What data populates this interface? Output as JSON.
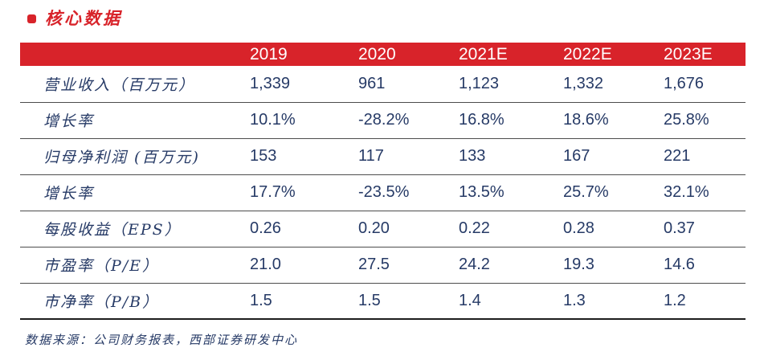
{
  "title": {
    "text": "核心数据"
  },
  "colors": {
    "accent_red": "#d8232a",
    "header_text": "#ffffff",
    "body_navy": "#263a66"
  },
  "table": {
    "header": [
      "",
      "2019",
      "2020",
      "2021E",
      "2022E",
      "2023E"
    ],
    "rows": [
      [
        "营业收入（百万元）",
        "1,339",
        "961",
        "1,123",
        "1,332",
        "1,676"
      ],
      [
        "增长率",
        "10.1%",
        "-28.2%",
        "16.8%",
        "18.6%",
        "25.8%"
      ],
      [
        "归母净利润 (百万元)",
        "153",
        "117",
        "133",
        "167",
        "221"
      ],
      [
        "增长率",
        "17.7%",
        "-23.5%",
        "13.5%",
        "25.7%",
        "32.1%"
      ],
      [
        "每股收益（EPS）",
        "0.26",
        "0.20",
        "0.22",
        "0.28",
        "0.37"
      ],
      [
        "市盈率（P/E）",
        "21.0",
        "27.5",
        "24.2",
        "19.3",
        "14.6"
      ],
      [
        "市净率（P/B）",
        "1.5",
        "1.5",
        "1.4",
        "1.3",
        "1.2"
      ]
    ]
  },
  "footer": {
    "text": "数据来源：公司财务报表，西部证券研发中心"
  }
}
